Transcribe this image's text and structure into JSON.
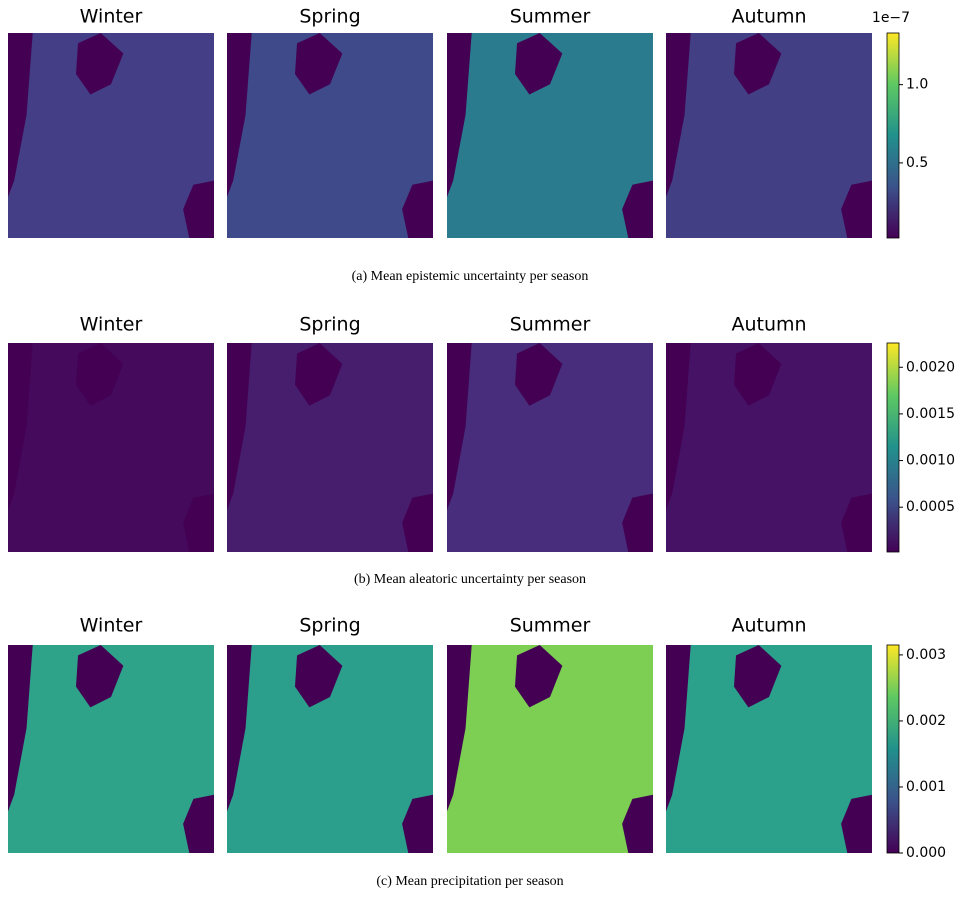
{
  "chart_data": [
    {
      "type": "heatmap",
      "panels": [
        "Winter",
        "Spring",
        "Summer",
        "Autumn"
      ],
      "panel_colors": [
        "#433e85",
        "#3f4a8a",
        "#2a7b8e",
        "#423f85"
      ],
      "colorbar_offset": "1e−7",
      "clim": [
        0.02,
        1.33
      ],
      "cticks": [
        0.5,
        {
          "value": 1.0,
          "label": "1.0"
        }
      ],
      "caption": "(a) Mean epistemic uncertainty per season"
    },
    {
      "type": "heatmap",
      "panels": [
        "Winter",
        "Spring",
        "Summer",
        "Autumn"
      ],
      "panel_colors": [
        "#450a5c",
        "#471e6e",
        "#472d7b",
        "#461265"
      ],
      "clim": [
        2e-05,
        0.00226
      ],
      "cticks": [
        {
          "value": 0.0005,
          "label": "0.0005"
        },
        {
          "value": 0.001,
          "label": "0.0010"
        },
        {
          "value": 0.0015,
          "label": "0.0015"
        },
        {
          "value": 0.002,
          "label": "0.0020"
        }
      ],
      "caption": "(b) Mean aleatoric uncertainty per season"
    },
    {
      "type": "heatmap",
      "panels": [
        "Winter",
        "Spring",
        "Summer",
        "Autumn"
      ],
      "panel_colors": [
        "#2ea38a",
        "#2b9f8b",
        "#7ccf52",
        "#2ba08a"
      ],
      "clim": [
        0,
        0.00315
      ],
      "cticks": [
        {
          "value": 0,
          "label": "0.000"
        },
        {
          "value": 0.001,
          "label": "0.001"
        },
        {
          "value": 0.002,
          "label": "0.002"
        },
        {
          "value": 0.003,
          "label": "0.003"
        }
      ],
      "caption": "(c) Mean precipitation per season"
    }
  ]
}
